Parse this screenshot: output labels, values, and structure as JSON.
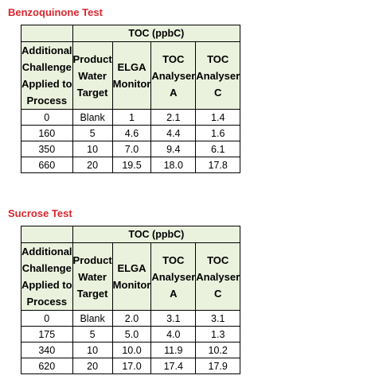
{
  "tables": [
    {
      "title": "Benzoquinone Test",
      "group_header": "TOC (ppbC)",
      "columns": [
        "Additional Challenge Applied to Process",
        "Product Water Target",
        "ELGA Monitor",
        "TOC Analyser A",
        "TOC Analyser C"
      ],
      "rows": [
        [
          "0",
          "Blank",
          "1",
          "2.1",
          "1.4"
        ],
        [
          "160",
          "5",
          "4.6",
          "4.4",
          "1.6"
        ],
        [
          "350",
          "10",
          "7.0",
          "9.4",
          "6.1"
        ],
        [
          "660",
          "20",
          "19.5",
          "18.0",
          "17.8"
        ]
      ]
    },
    {
      "title": "Sucrose Test",
      "group_header": "TOC (ppbC)",
      "columns": [
        "Additional Challenge Applied to Process",
        "Product Water Target",
        "ELGA Monitor",
        "TOC Analyser A",
        "TOC Analyser C"
      ],
      "rows": [
        [
          "0",
          "Blank",
          "2.0",
          "3.1",
          "3.1"
        ],
        [
          "175",
          "5",
          "5.0",
          "4.0",
          "1.3"
        ],
        [
          "340",
          "10",
          "10.0",
          "11.9",
          "10.2"
        ],
        [
          "620",
          "20",
          "17.0",
          "17.4",
          "17.9"
        ]
      ]
    }
  ],
  "colors": {
    "title": "#d9262e",
    "header_fill": "#eaf1dd",
    "border": "#000000"
  }
}
